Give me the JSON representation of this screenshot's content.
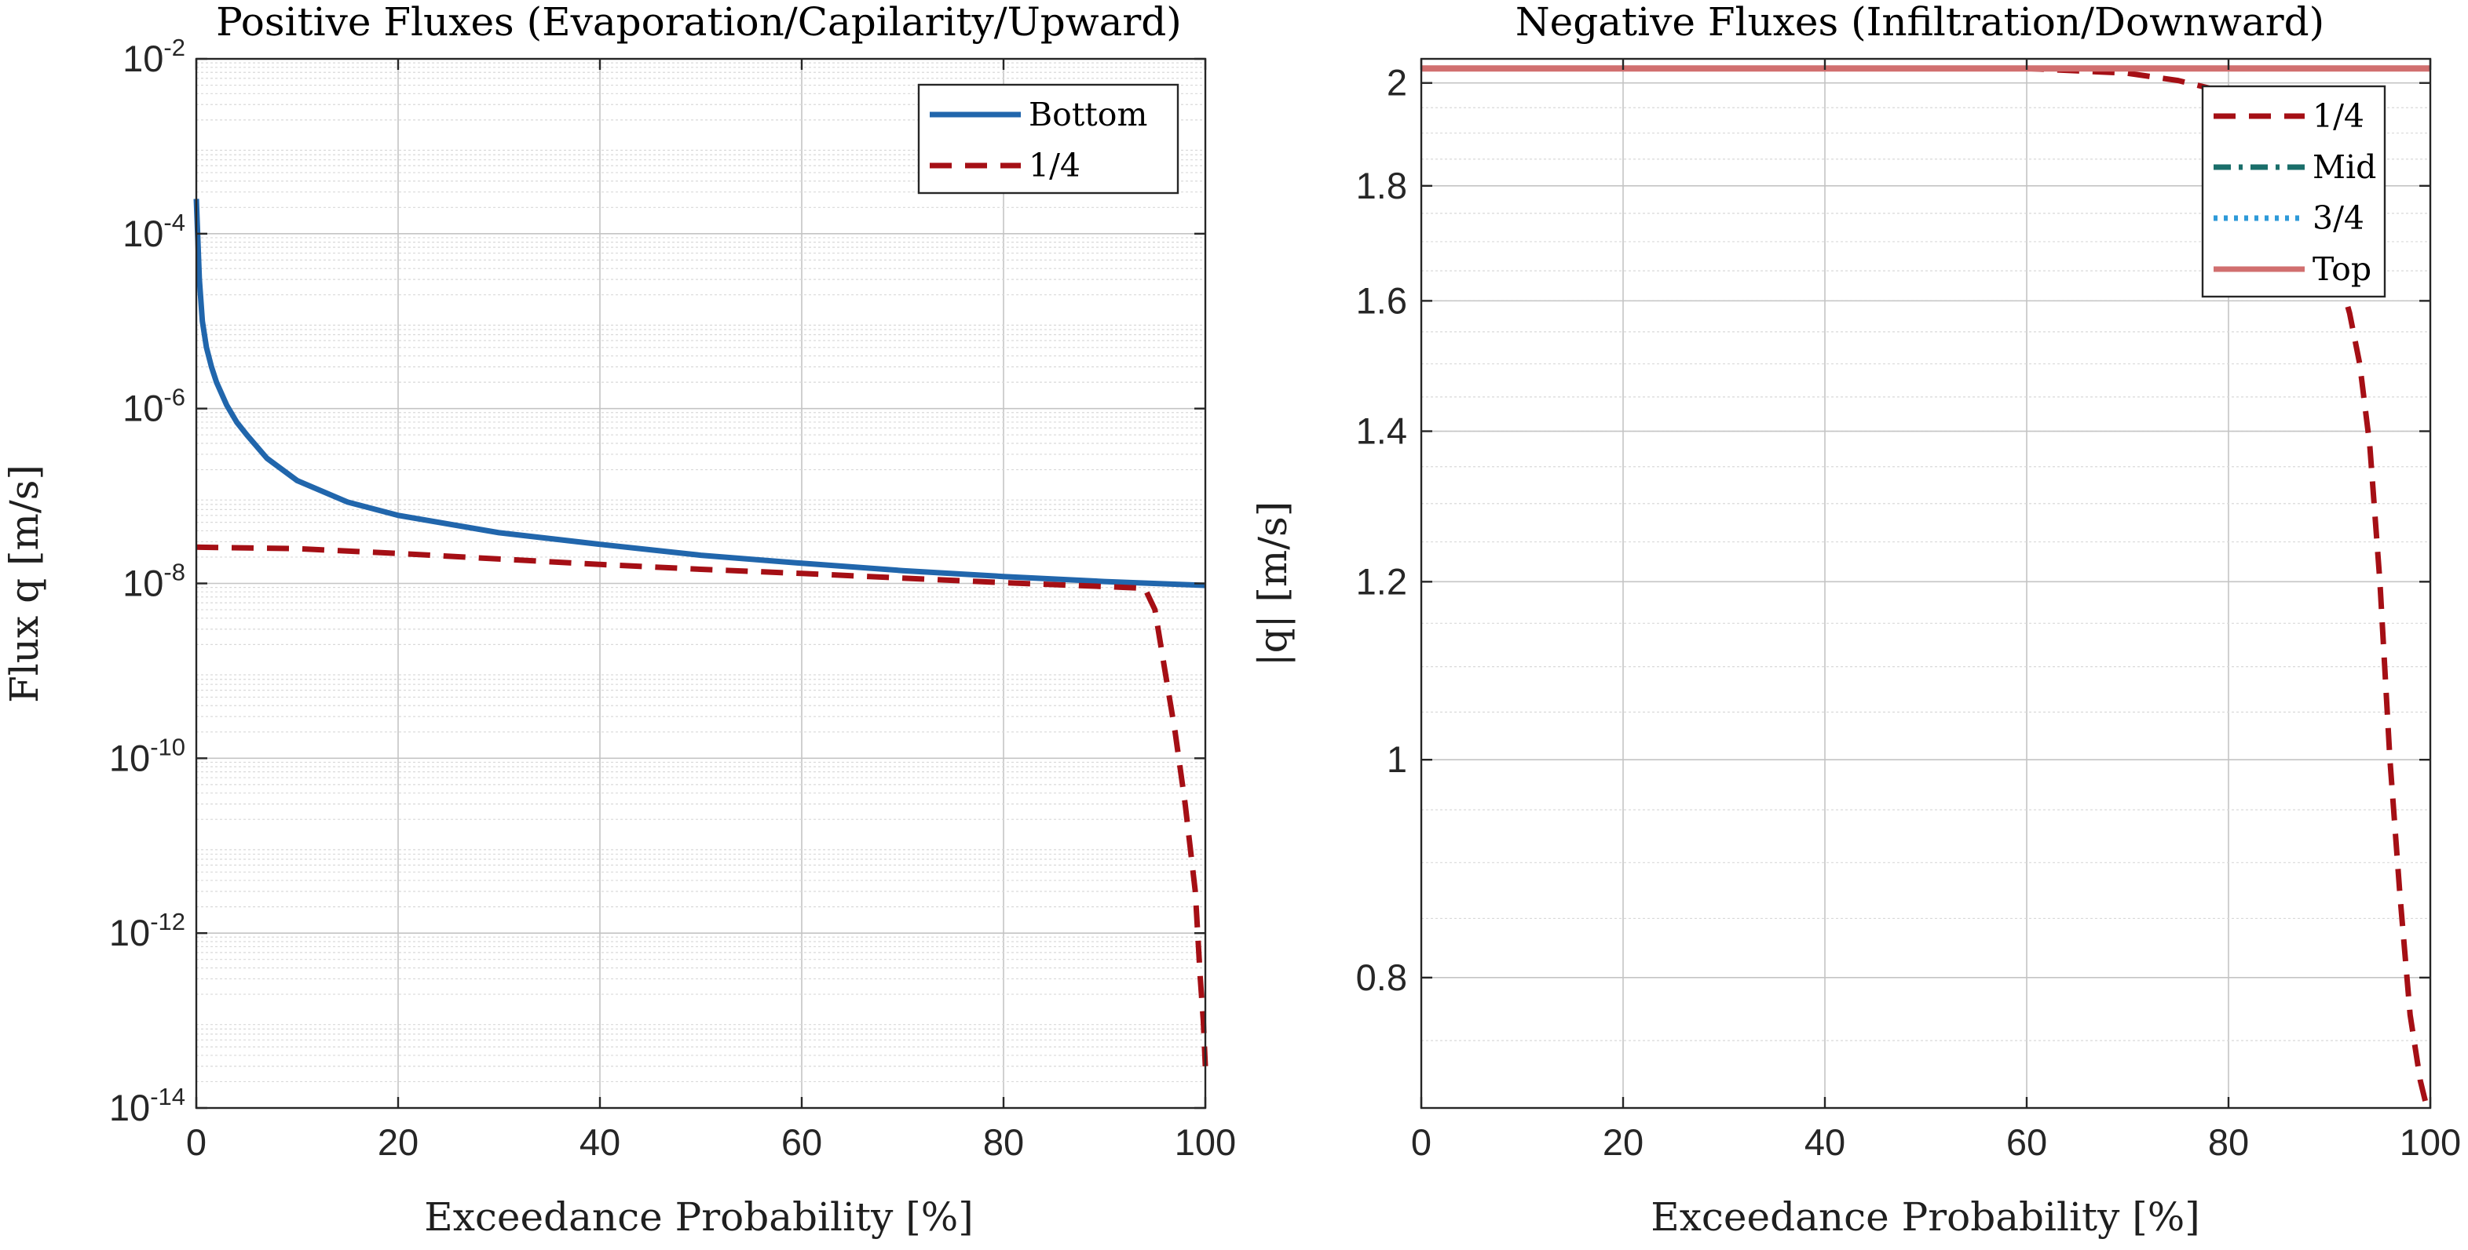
{
  "colors": {
    "bottom": "#2166ac",
    "quarter": "#a50f15",
    "mid": "#1a6e6a",
    "three_quarter": "#2e9ad8",
    "top": "#d16f6f"
  },
  "chart_data": [
    {
      "type": "line",
      "title": "Positive Fluxes (Evaporation/Capilarity/Upward)",
      "xlabel": "Exceedance Probability [%]",
      "ylabel": "Flux q [m/s]",
      "yscale": "log",
      "xlim": [
        0,
        100
      ],
      "ylim": [
        1e-14,
        0.01
      ],
      "grid": true,
      "legend_position": "top-right",
      "x_ticks": [
        "0",
        "20",
        "40",
        "60",
        "80",
        "100"
      ],
      "y_ticks": [
        {
          "base": "10",
          "exp": "-14"
        },
        {
          "base": "10",
          "exp": "-12"
        },
        {
          "base": "10",
          "exp": "-10"
        },
        {
          "base": "10",
          "exp": "-8"
        },
        {
          "base": "10",
          "exp": "-6"
        },
        {
          "base": "10",
          "exp": "-4"
        },
        {
          "base": "10",
          "exp": "-2"
        }
      ],
      "series": [
        {
          "name": "Bottom",
          "style": "solid",
          "color_key": "bottom",
          "x": [
            0,
            0.3,
            0.6,
            1,
            1.5,
            2,
            3,
            4,
            5,
            7,
            10,
            15,
            20,
            30,
            40,
            50,
            60,
            70,
            80,
            90,
            100
          ],
          "y": [
            0.00025,
            3e-05,
            1e-05,
            5e-06,
            3e-06,
            2e-06,
            1.1e-06,
            7e-07,
            5e-07,
            2.7e-07,
            1.5e-07,
            8.5e-08,
            6e-08,
            3.8e-08,
            2.8e-08,
            2.1e-08,
            1.7e-08,
            1.4e-08,
            1.2e-08,
            1.05e-08,
            9.5e-09
          ]
        },
        {
          "name": "1/4",
          "style": "dashed",
          "color_key": "quarter",
          "x": [
            0,
            10,
            20,
            30,
            40,
            50,
            60,
            70,
            80,
            90,
            94,
            95,
            96,
            97,
            98,
            99,
            99.5,
            99.8,
            100
          ],
          "y": [
            2.6e-08,
            2.5e-08,
            2.2e-08,
            1.9e-08,
            1.65e-08,
            1.45e-08,
            1.3e-08,
            1.15e-08,
            1.02e-08,
            9.2e-09,
            8.8e-09,
            5e-09,
            1e-09,
            2e-10,
            3e-11,
            3e-12,
            3e-13,
            1e-13,
            3e-14
          ]
        }
      ]
    },
    {
      "type": "line",
      "title": "Negative Fluxes (Infiltration/Downward)",
      "xlabel": "Exceedance Probability [%]",
      "ylabel": "|q| [m/s]",
      "yscale": "log",
      "xlim": [
        0,
        100
      ],
      "ylim": [
        0.7,
        2.05
      ],
      "grid": true,
      "legend_position": "top-right",
      "x_ticks": [
        "0",
        "20",
        "40",
        "60",
        "80",
        "100"
      ],
      "y_ticks": [
        "0.8",
        "1",
        "1.2",
        "1.4",
        "1.6",
        "1.8",
        "2"
      ],
      "series": [
        {
          "name": "1/4",
          "style": "dashed",
          "color_key": "quarter",
          "x": [
            0,
            40,
            55,
            60,
            65,
            70,
            75,
            78,
            80,
            83,
            86,
            88,
            90,
            92,
            93,
            94,
            95,
            96,
            97,
            98,
            99,
            99.5,
            100
          ],
          "y": [
            2.03,
            2.03,
            2.03,
            2.03,
            2.025,
            2.02,
            2.005,
            1.99,
            1.97,
            1.93,
            1.87,
            1.8,
            1.7,
            1.58,
            1.5,
            1.38,
            1.2,
            1.0,
            0.87,
            0.77,
            0.72,
            0.705,
            0.7
          ]
        },
        {
          "name": "Mid",
          "style": "dash-dot",
          "color_key": "mid",
          "x": [],
          "y": []
        },
        {
          "name": "3/4",
          "style": "dotted",
          "color_key": "three_quarter",
          "x": [],
          "y": []
        },
        {
          "name": "Top",
          "style": "solid",
          "color_key": "top",
          "x": [
            0,
            100
          ],
          "y": [
            2.03,
            2.03
          ]
        }
      ]
    }
  ]
}
